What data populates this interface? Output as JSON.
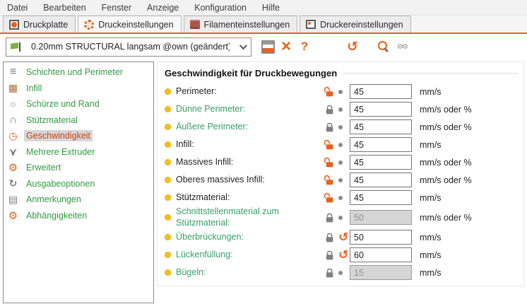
{
  "menu": {
    "items": [
      "Datei",
      "Bearbeiten",
      "Fenster",
      "Anzeige",
      "Konfiguration",
      "Hilfe"
    ]
  },
  "tabs": [
    {
      "label": "Druckplatte",
      "icon": "plate-icon",
      "active": "false"
    },
    {
      "label": "Druckeinstellungen",
      "icon": "print-settings-gear-icon",
      "active": "true"
    },
    {
      "label": "Filamenteinstellungen",
      "icon": "filament-icon",
      "active": "false"
    },
    {
      "label": "Druckereinstellungen",
      "icon": "printer-icon",
      "active": "false"
    }
  ],
  "toolbar": {
    "preset_value": "0.20mm STRUCTURAL langsam @own (geändert)",
    "icons": [
      "save-icon",
      "delete-icon",
      "help-icon",
      "unlock-all-icon",
      "undo-all-icon",
      "search-icon",
      "compare-presets-icon"
    ]
  },
  "sidebar": {
    "items": [
      {
        "label": "Schichten und Perimeter",
        "icon": "layers-icon",
        "selected": "false"
      },
      {
        "label": "Infill",
        "icon": "infill-icon",
        "selected": "false"
      },
      {
        "label": "Schürze und Rand",
        "icon": "skirt-icon",
        "selected": "false"
      },
      {
        "label": "Stützmaterial",
        "icon": "support-icon",
        "selected": "false"
      },
      {
        "label": "Geschwindigkeit",
        "icon": "speed-clock-icon",
        "selected": "true"
      },
      {
        "label": "Mehrere Extruder",
        "icon": "multiple-extruders-icon",
        "selected": "false"
      },
      {
        "label": "Erweitert",
        "icon": "advanced-gear-icon",
        "selected": "false"
      },
      {
        "label": "Ausgabeoptionen",
        "icon": "output-options-icon",
        "selected": "false"
      },
      {
        "label": "Anmerkungen",
        "icon": "notes-icon",
        "selected": "false"
      },
      {
        "label": "Abhängigkeiten",
        "icon": "dependencies-icon",
        "selected": "false"
      }
    ]
  },
  "panel": {
    "title": "Geschwindigkeit für Druckbewegungen",
    "rows": [
      {
        "label": "Perimeter:",
        "label_style": "modified",
        "lock": "open",
        "lock_name": "unlock-icon",
        "action": "dot",
        "action_name": "dot-indicator",
        "action_interactable": "false",
        "value": "45",
        "unit": "mm/s",
        "state": "enabled",
        "editable": "true"
      },
      {
        "label": "Dünne Perimeter:",
        "label_style": "system",
        "lock": "closed",
        "lock_name": "lock-icon",
        "action": "dot",
        "action_name": "dot-indicator",
        "action_interactable": "false",
        "value": "45",
        "unit": "mm/s oder %",
        "state": "enabled",
        "editable": "true"
      },
      {
        "label": "Äußere Perimeter:",
        "label_style": "system",
        "lock": "closed",
        "lock_name": "lock-icon",
        "action": "dot",
        "action_name": "dot-indicator",
        "action_interactable": "false",
        "value": "45",
        "unit": "mm/s oder %",
        "state": "enabled",
        "editable": "true"
      },
      {
        "label": "Infill:",
        "label_style": "modified",
        "lock": "open",
        "lock_name": "unlock-icon",
        "action": "dot",
        "action_name": "dot-indicator",
        "action_interactable": "false",
        "value": "45",
        "unit": "mm/s",
        "state": "enabled",
        "editable": "true"
      },
      {
        "label": "Massives Infill:",
        "label_style": "modified",
        "lock": "open",
        "lock_name": "unlock-icon",
        "action": "dot",
        "action_name": "dot-indicator",
        "action_interactable": "false",
        "value": "45",
        "unit": "mm/s oder %",
        "state": "enabled",
        "editable": "true"
      },
      {
        "label": "Oberes massives Infill:",
        "label_style": "modified",
        "lock": "open",
        "lock_name": "unlock-icon",
        "action": "dot",
        "action_name": "dot-indicator",
        "action_interactable": "false",
        "value": "45",
        "unit": "mm/s oder %",
        "state": "enabled",
        "editable": "true"
      },
      {
        "label": "Stützmaterial:",
        "label_style": "modified",
        "lock": "open",
        "lock_name": "unlock-icon",
        "action": "dot",
        "action_name": "dot-indicator",
        "action_interactable": "false",
        "value": "45",
        "unit": "mm/s",
        "state": "enabled",
        "editable": "true"
      },
      {
        "label": "Schnittstellenmaterial zum Stützmaterial:",
        "label_style": "system",
        "lock": "closed",
        "lock_name": "lock-icon",
        "action": "dot",
        "action_name": "dot-indicator",
        "action_interactable": "false",
        "value": "50",
        "unit": "mm/s oder %",
        "state": "disabled",
        "editable": "false"
      },
      {
        "label": "Überbrückungen:",
        "label_style": "system",
        "lock": "closed",
        "lock_name": "lock-icon",
        "action": "undo",
        "action_name": "undo-icon",
        "action_interactable": "true",
        "value": "50",
        "unit": "mm/s",
        "state": "enabled",
        "editable": "true"
      },
      {
        "label": "Lückenfüllung:",
        "label_style": "system",
        "lock": "closed",
        "lock_name": "lock-icon",
        "action": "undo",
        "action_name": "undo-icon",
        "action_interactable": "true",
        "value": "60",
        "unit": "mm/s",
        "state": "enabled",
        "editable": "true"
      },
      {
        "label": "Bügeln:",
        "label_style": "system",
        "lock": "closed",
        "lock_name": "lock-icon",
        "action": "dot",
        "action_name": "dot-indicator",
        "action_interactable": "false",
        "value": "15",
        "unit": "mm/s",
        "state": "disabled",
        "editable": "false"
      }
    ]
  },
  "colors": {
    "accent": "#e8601c",
    "system_label_green": "#35a065",
    "sidebar_green": "#2e9b3f",
    "selected_item_text": "#ce4413",
    "bullet_yellow": "#f5c01e"
  }
}
